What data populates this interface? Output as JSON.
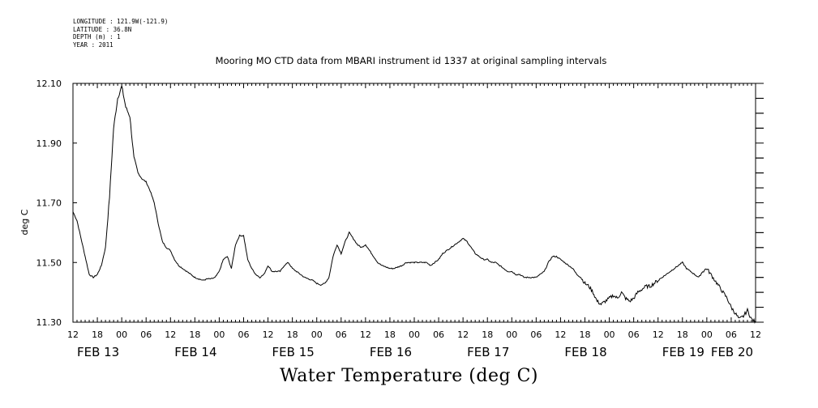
{
  "header": {
    "longitude": "LONGITUDE : 121.9W(-121.9)",
    "latitude": "LATITUDE : 36.8N",
    "depth": "DEPTH (m) : 1",
    "year": "YEAR : 2011"
  },
  "chart_data": {
    "type": "line",
    "title": "Mooring MO CTD data from MBARI instrument id 1337 at original sampling intervals",
    "xlabel": "Water Temperature (deg C)",
    "ylabel": "deg C",
    "ylim": [
      11.3,
      12.1
    ],
    "y_ticks": [
      "11.30",
      "11.50",
      "11.70",
      "11.90",
      "12.10"
    ],
    "x_hour_ticks": [
      "12",
      "18",
      "00",
      "06",
      "12",
      "18",
      "00",
      "06",
      "12",
      "18",
      "00",
      "06",
      "12",
      "18",
      "00",
      "06",
      "12",
      "18",
      "00",
      "06",
      "12",
      "18",
      "00",
      "06",
      "12",
      "18",
      "00",
      "06",
      "12"
    ],
    "x_day_labels": [
      "FEB 13",
      "FEB 14",
      "FEB 15",
      "FEB 16",
      "FEB 17",
      "FEB 18",
      "FEB 19",
      "FEB 20"
    ],
    "x_range_hours": [
      0,
      168
    ],
    "x_unit": "hours since 2011-02-13 12:00",
    "line_color": "#000000",
    "series": [
      {
        "points": [
          [
            0,
            11.67
          ],
          [
            1,
            11.64
          ],
          [
            2,
            11.58
          ],
          [
            3,
            11.52
          ],
          [
            4,
            11.46
          ],
          [
            5,
            11.45
          ],
          [
            6,
            11.46
          ],
          [
            7,
            11.49
          ],
          [
            8,
            11.55
          ],
          [
            9,
            11.72
          ],
          [
            10,
            11.95
          ],
          [
            11,
            12.05
          ],
          [
            12,
            12.09
          ],
          [
            13,
            12.02
          ],
          [
            14,
            11.99
          ],
          [
            15,
            11.85
          ],
          [
            16,
            11.8
          ],
          [
            17,
            11.78
          ],
          [
            18,
            11.77
          ],
          [
            19,
            11.74
          ],
          [
            20,
            11.7
          ],
          [
            21,
            11.63
          ],
          [
            22,
            11.57
          ],
          [
            23,
            11.55
          ],
          [
            24,
            11.54
          ],
          [
            25,
            11.51
          ],
          [
            26,
            11.49
          ],
          [
            27,
            11.48
          ],
          [
            28,
            11.47
          ],
          [
            29,
            11.46
          ],
          [
            30,
            11.45
          ],
          [
            31,
            11.445
          ],
          [
            32,
            11.44
          ],
          [
            33,
            11.445
          ],
          [
            34,
            11.445
          ],
          [
            35,
            11.45
          ],
          [
            36,
            11.47
          ],
          [
            37,
            11.51
          ],
          [
            38,
            11.52
          ],
          [
            39,
            11.48
          ],
          [
            40,
            11.56
          ],
          [
            41,
            11.59
          ],
          [
            42,
            11.59
          ],
          [
            43,
            11.51
          ],
          [
            44,
            11.48
          ],
          [
            45,
            11.46
          ],
          [
            46,
            11.45
          ],
          [
            47,
            11.46
          ],
          [
            48,
            11.49
          ],
          [
            49,
            11.47
          ],
          [
            50,
            11.47
          ],
          [
            51,
            11.47
          ],
          [
            52,
            11.49
          ],
          [
            53,
            11.5
          ],
          [
            54,
            11.48
          ],
          [
            55,
            11.47
          ],
          [
            56,
            11.46
          ],
          [
            57,
            11.45
          ],
          [
            58,
            11.445
          ],
          [
            59,
            11.44
          ],
          [
            60,
            11.43
          ],
          [
            61,
            11.425
          ],
          [
            62,
            11.43
          ],
          [
            63,
            11.45
          ],
          [
            64,
            11.52
          ],
          [
            65,
            11.56
          ],
          [
            66,
            11.53
          ],
          [
            67,
            11.57
          ],
          [
            68,
            11.6
          ],
          [
            69,
            11.58
          ],
          [
            70,
            11.56
          ],
          [
            71,
            11.55
          ],
          [
            72,
            11.56
          ],
          [
            73,
            11.54
          ],
          [
            74,
            11.52
          ],
          [
            75,
            11.5
          ],
          [
            76,
            11.49
          ],
          [
            77,
            11.485
          ],
          [
            78,
            11.48
          ],
          [
            79,
            11.48
          ],
          [
            80,
            11.485
          ],
          [
            81,
            11.49
          ],
          [
            82,
            11.5
          ],
          [
            83,
            11.5
          ],
          [
            84,
            11.5
          ],
          [
            85,
            11.5
          ],
          [
            86,
            11.5
          ],
          [
            87,
            11.5
          ],
          [
            88,
            11.49
          ],
          [
            89,
            11.5
          ],
          [
            90,
            11.51
          ],
          [
            91,
            11.53
          ],
          [
            92,
            11.54
          ],
          [
            93,
            11.55
          ],
          [
            94,
            11.56
          ],
          [
            95,
            11.57
          ],
          [
            96,
            11.58
          ],
          [
            97,
            11.57
          ],
          [
            98,
            11.55
          ],
          [
            99,
            11.53
          ],
          [
            100,
            11.52
          ],
          [
            101,
            11.51
          ],
          [
            102,
            11.51
          ],
          [
            103,
            11.5
          ],
          [
            104,
            11.5
          ],
          [
            105,
            11.49
          ],
          [
            106,
            11.48
          ],
          [
            107,
            11.47
          ],
          [
            108,
            11.47
          ],
          [
            109,
            11.46
          ],
          [
            110,
            11.46
          ],
          [
            111,
            11.45
          ],
          [
            112,
            11.45
          ],
          [
            113,
            11.45
          ],
          [
            114,
            11.45
          ],
          [
            115,
            11.46
          ],
          [
            116,
            11.47
          ],
          [
            117,
            11.5
          ],
          [
            118,
            11.52
          ],
          [
            119,
            11.52
          ],
          [
            120,
            11.51
          ],
          [
            121,
            11.5
          ],
          [
            122,
            11.49
          ],
          [
            123,
            11.48
          ],
          [
            124,
            11.46
          ],
          [
            125,
            11.45
          ],
          [
            126,
            11.43
          ],
          [
            127,
            11.42
          ],
          [
            128,
            11.4
          ],
          [
            129,
            11.37
          ],
          [
            130,
            11.36
          ],
          [
            131,
            11.37
          ],
          [
            132,
            11.38
          ],
          [
            133,
            11.39
          ],
          [
            134,
            11.38
          ],
          [
            135,
            11.4
          ],
          [
            136,
            11.38
          ],
          [
            137,
            11.37
          ],
          [
            138,
            11.38
          ],
          [
            139,
            11.4
          ],
          [
            140,
            11.41
          ],
          [
            141,
            11.42
          ],
          [
            142,
            11.42
          ],
          [
            143,
            11.43
          ],
          [
            144,
            11.44
          ],
          [
            145,
            11.45
          ],
          [
            146,
            11.46
          ],
          [
            147,
            11.47
          ],
          [
            148,
            11.48
          ],
          [
            149,
            11.49
          ],
          [
            150,
            11.5
          ],
          [
            151,
            11.48
          ],
          [
            152,
            11.47
          ],
          [
            153,
            11.46
          ],
          [
            154,
            11.45
          ],
          [
            155,
            11.47
          ],
          [
            156,
            11.48
          ],
          [
            157,
            11.46
          ],
          [
            158,
            11.44
          ],
          [
            159,
            11.42
          ],
          [
            160,
            11.4
          ],
          [
            161,
            11.38
          ],
          [
            162,
            11.35
          ],
          [
            163,
            11.33
          ],
          [
            164,
            11.31
          ],
          [
            165,
            11.32
          ],
          [
            166,
            11.34
          ],
          [
            167,
            11.31
          ],
          [
            168,
            11.3
          ]
        ]
      }
    ]
  },
  "footer": {
    "label": "Water Temperature (deg C)"
  }
}
